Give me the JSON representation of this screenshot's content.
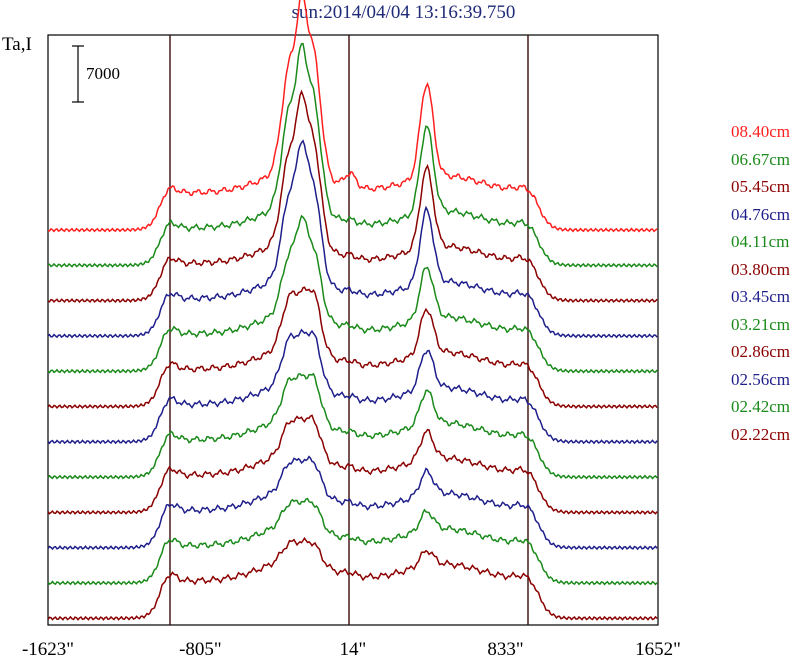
{
  "title": "sun:2014/04/04 13:16:39.750",
  "ylabel": "Ta,I",
  "scale_bar": "7000",
  "colors": {
    "red": "#ff1f1f",
    "green": "#1a8a1a",
    "maroon": "#8b0000",
    "navy": "#1f1f8c"
  },
  "chart_data": {
    "type": "line",
    "title": "sun:2014/04/04 13:16:39.750",
    "ylabel": "Ta,I",
    "x_ticks": [
      "-1623\"",
      "-805\"",
      "14\"",
      "833\"",
      "1652\""
    ],
    "xlim": [
      -1623,
      1652
    ],
    "vertical_markers": [
      -1000,
      14,
      1000
    ],
    "scale_bar": "7000",
    "legend_position": "right",
    "series": [
      {
        "name": "08.40cm",
        "color": "#ff1f1f",
        "base": 0,
        "amp": 1.0
      },
      {
        "name": "06.67cm",
        "color": "#1a8a1a",
        "base": 1,
        "amp": 0.92
      },
      {
        "name": "05.45cm",
        "color": "#8b0000",
        "base": 2,
        "amp": 0.85
      },
      {
        "name": "04.76cm",
        "color": "#1f1f8c",
        "base": 3,
        "amp": 0.78
      },
      {
        "name": "04.11cm",
        "color": "#1a8a1a",
        "base": 4,
        "amp": 0.55
      },
      {
        "name": "03.80cm",
        "color": "#8b0000",
        "base": 5,
        "amp": 0.48
      },
      {
        "name": "03.45cm",
        "color": "#1f1f8c",
        "base": 6,
        "amp": 0.42
      },
      {
        "name": "03.21cm",
        "color": "#1a8a1a",
        "base": 7,
        "amp": 0.36
      },
      {
        "name": "02.86cm",
        "color": "#8b0000",
        "base": 8,
        "amp": 0.3
      },
      {
        "name": "02.56cm",
        "color": "#1f1f8c",
        "base": 9,
        "amp": 0.25
      },
      {
        "name": "02.42cm",
        "color": "#1a8a1a",
        "base": 10,
        "amp": 0.2
      },
      {
        "name": "02.22cm",
        "color": "#8b0000",
        "base": 11,
        "amp": 0.16
      }
    ]
  }
}
